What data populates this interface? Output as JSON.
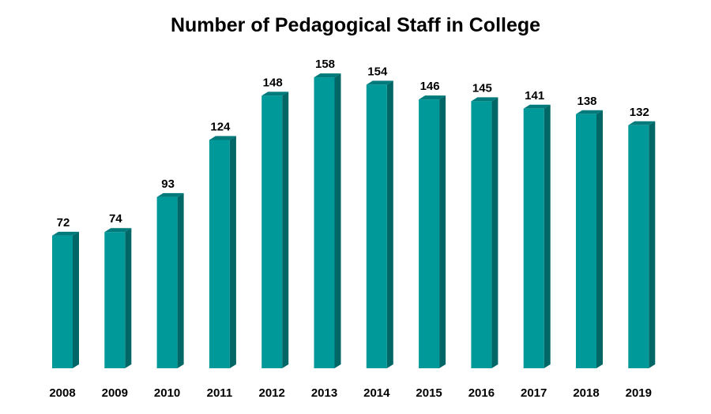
{
  "chart_data": {
    "type": "bar",
    "title": "Number of Pedagogical Staff in College",
    "xlabel": "",
    "ylabel": "",
    "categories": [
      "2008",
      "2009",
      "2010",
      "2011",
      "2012",
      "2013",
      "2014",
      "2015",
      "2016",
      "2017",
      "2018",
      "2019"
    ],
    "values": [
      72,
      74,
      93,
      124,
      148,
      158,
      154,
      146,
      145,
      141,
      138,
      132
    ],
    "data_labels": [
      "72",
      "74",
      "93",
      "124",
      "148",
      "158",
      "154",
      "146",
      "145",
      "141",
      "138",
      "132"
    ],
    "ylim": [
      0,
      160
    ],
    "grid": false,
    "legend": "none",
    "style": "3d-column",
    "colors": {
      "front": "#009999",
      "side": "#006666",
      "top": "#007a7a"
    }
  }
}
